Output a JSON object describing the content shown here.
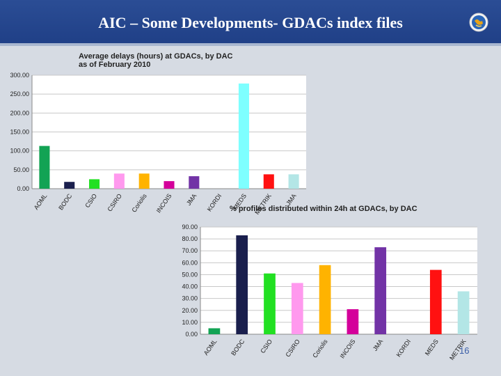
{
  "slide": {
    "title": "AIC – Some Developments- GDACs index files",
    "page_number": "16",
    "logo": "globe-emblem-icon"
  },
  "colors": {
    "header": "#1f3f86",
    "background": "#d6dbe3"
  },
  "chart_data": [
    {
      "type": "bar",
      "title_lines": [
        "Average delays  (hours) at GDACs, by DAC",
        "as of February 2010"
      ],
      "categories": [
        "AOML",
        "BODC",
        "CSIO",
        "CSIRO",
        "Coriolis",
        "INCOIS",
        "JMA",
        "KORDI",
        "MEDS",
        "METRIK",
        "JMA"
      ],
      "values": [
        113,
        18,
        25,
        40,
        40,
        20,
        33,
        0,
        278,
        38,
        38
      ],
      "colors": [
        "#12a354",
        "#1a1f4d",
        "#22e022",
        "#ff99ee",
        "#ffb300",
        "#d4009a",
        "#7233a6",
        "#ffffff",
        "#7effff",
        "#ff1111",
        "#b3e6e6"
      ],
      "ylim": [
        0,
        300
      ],
      "yticks": [
        "0.00",
        "50.00",
        "100.00",
        "150.00",
        "200.00",
        "250.00",
        "300.00"
      ],
      "grid": true
    },
    {
      "type": "bar",
      "title": "% profiles distributed within 24h at GDACs, by DAC",
      "categories": [
        "AOML",
        "BODC",
        "CSIO",
        "CSIRO",
        "Coriolis",
        "INCOIS",
        "JMA",
        "KORDI",
        "MEDS",
        "METRIK"
      ],
      "values": [
        5,
        83,
        51,
        43,
        58,
        21,
        73,
        0,
        54,
        36
      ],
      "colors": [
        "#12a354",
        "#1a1f4d",
        "#22e022",
        "#ff99ee",
        "#ffb300",
        "#d4009a",
        "#7233a6",
        "#ffffff",
        "#ff1111",
        "#b3e6e6"
      ],
      "ylim": [
        0,
        90
      ],
      "yticks": [
        "0.00",
        "10.00",
        "20.00",
        "30.00",
        "40.00",
        "50.00",
        "60.00",
        "70.00",
        "80.00",
        "90.00"
      ],
      "grid": true
    }
  ]
}
